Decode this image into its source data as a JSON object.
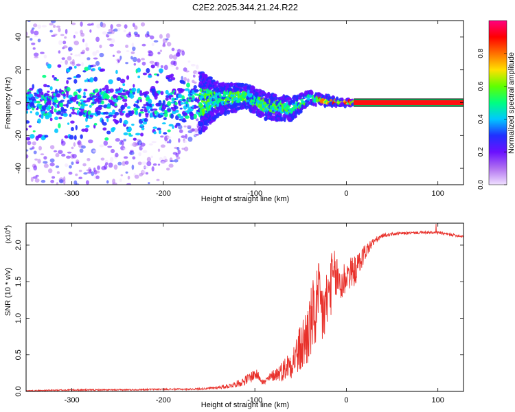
{
  "chart_data": [
    {
      "type": "heatmap",
      "title": "C2E2.2025.344.21.24.R22",
      "xlabel": "Height of straight line (km)",
      "ylabel": "Frequency (Hz)",
      "xlim": [
        -350,
        128
      ],
      "ylim": [
        -50,
        50
      ],
      "x_ticks": [
        -300,
        -200,
        -100,
        0,
        100
      ],
      "y_ticks": [
        -40,
        -20,
        0,
        20,
        40
      ],
      "colorbar": {
        "label": "Normalized spectral amplitude",
        "range": [
          0,
          1
        ],
        "ticks": [
          "0.0",
          "0.2",
          "0.4",
          "0.6",
          "0.8"
        ],
        "colors": [
          "#f0e0ff",
          "#b070f0",
          "#6a10ff",
          "#2030ff",
          "#00c8ff",
          "#00ff80",
          "#60ff00",
          "#ffe000",
          "#ff7000",
          "#ff0000",
          "#ff0080"
        ]
      },
      "signal_band": {
        "x_start": 8,
        "x_end": 128,
        "center_hz": 0,
        "half_width_hz": 1.5
      },
      "spread_trend": [
        {
          "x": -350,
          "center": 0,
          "spread": 50
        },
        {
          "x": -250,
          "center": 0,
          "spread": 50
        },
        {
          "x": -210,
          "center": 0,
          "spread": 50
        },
        {
          "x": -160,
          "center": 0,
          "spread": 20
        },
        {
          "x": -140,
          "center": 2,
          "spread": 10
        },
        {
          "x": -110,
          "center": 4,
          "spread": 7
        },
        {
          "x": -90,
          "center": -2,
          "spread": 8
        },
        {
          "x": -60,
          "center": -4,
          "spread": 7
        },
        {
          "x": -40,
          "center": 3,
          "spread": 4
        },
        {
          "x": -20,
          "center": 1,
          "spread": 3
        },
        {
          "x": 0,
          "center": 0,
          "spread": 2
        }
      ]
    },
    {
      "type": "line",
      "xlabel": "Height of straight line (km)",
      "ylabel": "SNR (10 * v/v)",
      "y_scale_label": "(x10",
      "y_scale_exponent": "4",
      "xlim": [
        -350,
        128
      ],
      "ylim": [
        0,
        2.3
      ],
      "x_ticks": [
        -300,
        -200,
        -100,
        0,
        100
      ],
      "y_ticks": [
        "0.0",
        "0.5",
        "1.0",
        "1.5",
        "2.0"
      ],
      "series": [
        {
          "name": "SNR",
          "color": "#e8302a",
          "x": [
            -350,
            -300,
            -250,
            -200,
            -170,
            -150,
            -130,
            -115,
            -105,
            -100,
            -95,
            -90,
            -80,
            -70,
            -60,
            -55,
            -50,
            -45,
            -40,
            -35,
            -30,
            -25,
            -20,
            -15,
            -10,
            -5,
            0,
            5,
            10,
            20,
            30,
            40,
            50,
            60,
            80,
            100,
            110,
            128
          ],
          "values": [
            0.01,
            0.02,
            0.02,
            0.03,
            0.03,
            0.04,
            0.07,
            0.12,
            0.19,
            0.24,
            0.2,
            0.12,
            0.22,
            0.28,
            0.4,
            0.48,
            0.58,
            0.7,
            0.88,
            1.05,
            1.22,
            1.05,
            1.3,
            1.55,
            1.55,
            1.45,
            1.6,
            1.62,
            1.65,
            1.9,
            2.05,
            2.13,
            2.15,
            2.16,
            2.17,
            2.17,
            2.15,
            2.12
          ],
          "noise": [
            0.005,
            0.01,
            0.01,
            0.01,
            0.01,
            0.015,
            0.03,
            0.05,
            0.08,
            0.08,
            0.06,
            0.05,
            0.08,
            0.14,
            0.22,
            0.28,
            0.35,
            0.45,
            0.5,
            0.55,
            0.55,
            0.5,
            0.45,
            0.4,
            0.35,
            0.3,
            0.25,
            0.22,
            0.2,
            0.12,
            0.05,
            0.03,
            0.02,
            0.02,
            0.02,
            0.02,
            0.02,
            0.02
          ]
        }
      ]
    }
  ]
}
